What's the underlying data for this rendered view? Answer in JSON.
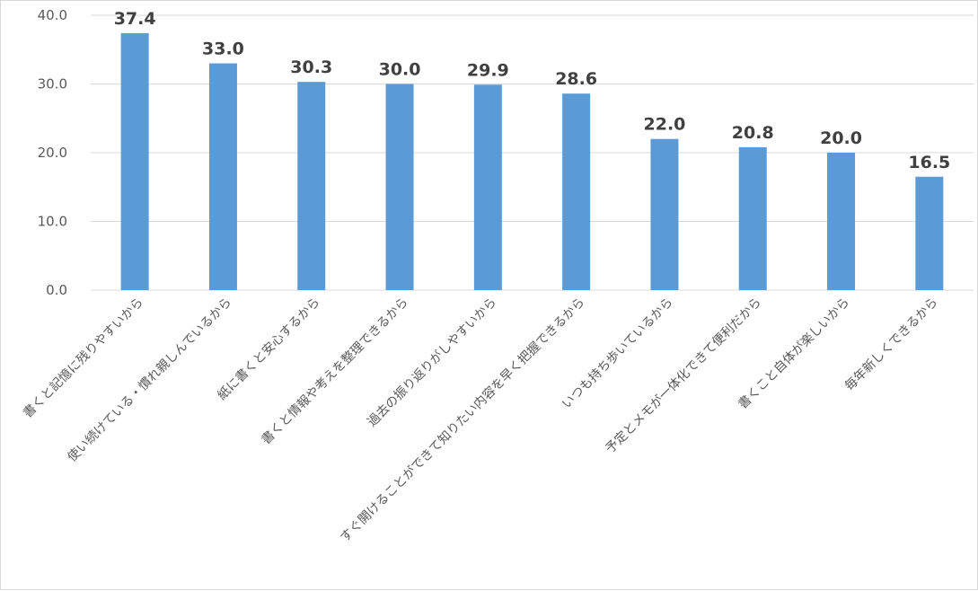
{
  "chart_data": {
    "type": "bar",
    "categories": [
      "書くと記憶に残りやすいから",
      "使い続けている・慣れ親しんでいるから",
      "紙に書くと安心するから",
      "書くと情報や考えを整理できるから",
      "過去の振り返りがしやすいから",
      "すぐ開けることができて知りたい内容を早く把握できるから",
      "いつも持ち歩いているから",
      "予定とメモが一体化できて便利だから",
      "書くこと自体が楽しいから",
      "毎年新しくできるから"
    ],
    "values": [
      37.4,
      33.0,
      30.3,
      30.0,
      29.9,
      28.6,
      22.0,
      20.8,
      20.0,
      16.5
    ],
    "value_labels": [
      "37.4",
      "33.0",
      "30.3",
      "30.0",
      "29.9",
      "28.6",
      "22.0",
      "20.8",
      "20.0",
      "16.5"
    ],
    "ylim": [
      0,
      40
    ],
    "yticks": [
      "0.0",
      "10.0",
      "20.0",
      "30.0",
      "40.0"
    ],
    "grid": true,
    "bar_color": "#5b9bd5",
    "grid_color": "#d9d9d9"
  }
}
